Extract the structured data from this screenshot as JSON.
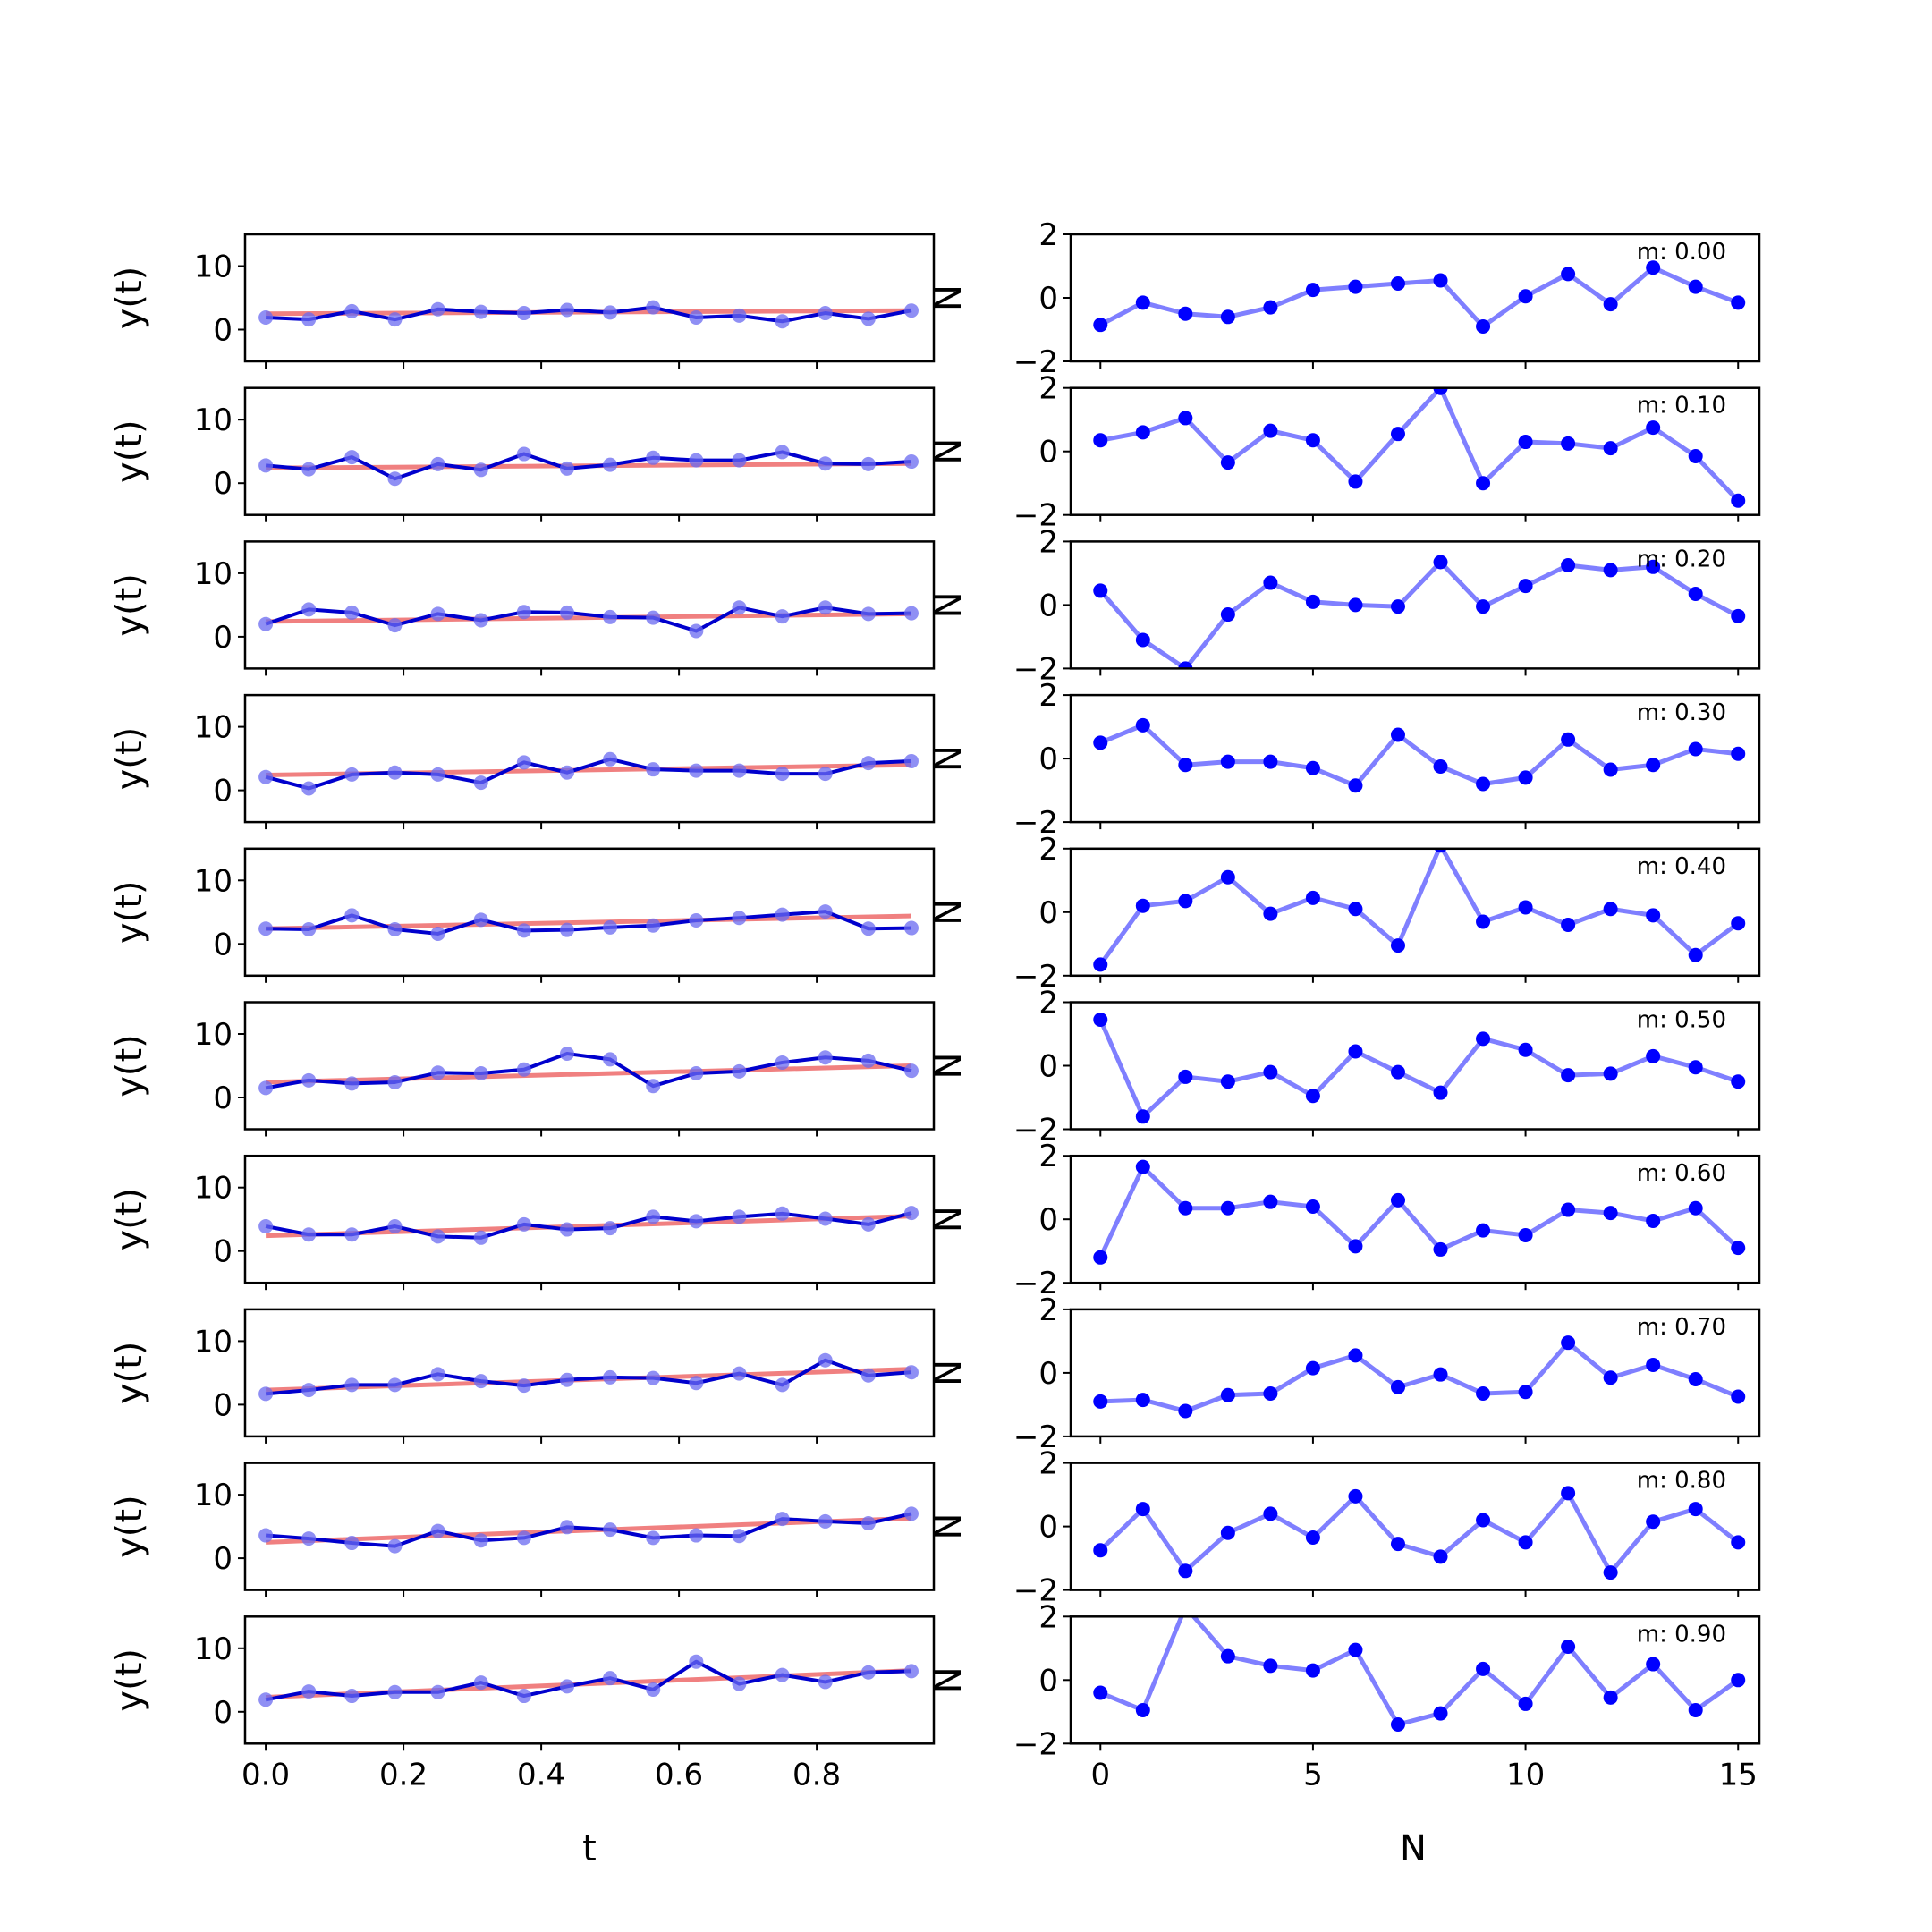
{
  "figure": {
    "left_xlabel": "t",
    "right_xlabel": "N",
    "left_ylabel": "y(t)",
    "right_ylabel": "N",
    "colors": {
      "fit": "#f08080",
      "data": "#0000cd",
      "markers": "#6a6af0",
      "residual": "#0000ff"
    }
  },
  "chart_data": [
    {
      "type": "line",
      "panel": "left",
      "ylabel": "y(t)",
      "xlabel": "t",
      "xlim": [
        -0.03,
        0.97
      ],
      "ylim": [
        -5,
        15
      ],
      "xticks": [
        0.0,
        0.2,
        0.4,
        0.6,
        0.8
      ],
      "xtick_labels": [
        "0.0",
        "0.2",
        "0.4",
        "0.6",
        "0.8"
      ],
      "yticks": [
        0,
        10
      ],
      "ytick_labels": [
        "0",
        "10"
      ],
      "x": [
        0,
        0.0625,
        0.125,
        0.1875,
        0.25,
        0.3125,
        0.375,
        0.4375,
        0.5,
        0.5625,
        0.625,
        0.6875,
        0.75,
        0.8125,
        0.875,
        0.9375
      ],
      "series": [
        {
          "m": 0.0,
          "values": [
            1.9,
            1.6,
            2.9,
            1.6,
            3.2,
            2.8,
            2.6,
            3.1,
            2.7,
            3.5,
            1.9,
            2.2,
            1.3,
            2.6,
            1.7,
            3.0
          ],
          "fit": [
            2.5,
            3.0
          ]
        },
        {
          "m": 0.1,
          "values": [
            2.8,
            2.2,
            4.1,
            0.7,
            3.0,
            2.1,
            4.6,
            2.3,
            2.9,
            4.0,
            3.6,
            3.6,
            4.9,
            3.1,
            3.0,
            3.4
          ],
          "fit": [
            2.4,
            3.1
          ]
        },
        {
          "m": 0.2,
          "values": [
            2.0,
            4.3,
            3.8,
            1.8,
            3.6,
            2.6,
            3.9,
            3.8,
            3.1,
            3.0,
            0.9,
            4.6,
            3.2,
            4.6,
            3.6,
            3.7
          ],
          "fit": [
            2.4,
            3.6
          ]
        },
        {
          "m": 0.3,
          "values": [
            2.1,
            0.3,
            2.5,
            2.8,
            2.5,
            1.2,
            4.4,
            2.8,
            4.9,
            3.3,
            3.1,
            3.1,
            2.6,
            2.6,
            4.3,
            4.6
          ],
          "fit": [
            2.4,
            4.0
          ]
        },
        {
          "m": 0.4,
          "values": [
            2.4,
            2.3,
            4.5,
            2.3,
            1.6,
            3.8,
            2.1,
            2.2,
            2.6,
            2.9,
            3.7,
            4.1,
            4.6,
            5.1,
            2.4,
            2.5
          ],
          "fit": [
            2.4,
            4.4
          ]
        },
        {
          "m": 0.5,
          "values": [
            1.5,
            2.7,
            2.2,
            2.4,
            3.9,
            3.8,
            4.4,
            6.9,
            6.0,
            1.8,
            3.8,
            4.1,
            5.5,
            6.3,
            5.8,
            4.2
          ],
          "fit": [
            2.4,
            5.0
          ]
        },
        {
          "m": 0.6,
          "values": [
            3.9,
            2.6,
            2.6,
            3.9,
            2.3,
            2.1,
            4.2,
            3.4,
            3.6,
            5.4,
            4.7,
            5.4,
            5.9,
            5.1,
            4.2,
            6.0
          ],
          "fit": [
            2.4,
            5.5
          ]
        },
        {
          "m": 0.7,
          "values": [
            1.7,
            2.3,
            3.1,
            3.1,
            4.8,
            3.7,
            3.0,
            3.9,
            4.3,
            4.2,
            3.4,
            4.9,
            3.1,
            7.0,
            4.6,
            5.1
          ],
          "fit": [
            2.3,
            5.6
          ]
        },
        {
          "m": 0.8,
          "values": [
            3.6,
            3.1,
            2.4,
            1.9,
            4.3,
            2.8,
            3.2,
            4.9,
            4.5,
            3.2,
            3.6,
            3.5,
            6.2,
            5.8,
            5.5,
            7.0
          ],
          "fit": [
            2.5,
            6.3
          ]
        },
        {
          "m": 0.9,
          "values": [
            1.9,
            3.2,
            2.5,
            3.1,
            3.1,
            4.6,
            2.5,
            4.0,
            5.3,
            3.5,
            7.9,
            4.4,
            5.8,
            4.7,
            6.2,
            6.4
          ],
          "fit": [
            2.3,
            6.5
          ]
        }
      ]
    },
    {
      "type": "line",
      "panel": "right",
      "xlabel": "N",
      "xlim": [
        -0.7,
        15.5
      ],
      "ylim": [
        -2,
        2
      ],
      "xticks": [
        0,
        5,
        10,
        15
      ],
      "xtick_labels": [
        "0",
        "5",
        "10",
        "15"
      ],
      "yticks": [
        -2,
        0,
        2
      ],
      "ytick_labels": [
        "−2",
        "0",
        "2"
      ],
      "x": [
        0,
        1,
        2,
        3,
        4,
        5,
        6,
        7,
        8,
        9,
        10,
        11,
        12,
        13,
        14,
        15
      ],
      "series": [
        {
          "label": "m: 0.00",
          "values": [
            -0.85,
            -0.15,
            -0.5,
            -0.6,
            -0.3,
            0.25,
            0.35,
            0.45,
            0.55,
            -0.9,
            0.05,
            0.75,
            -0.2,
            0.95,
            0.35,
            -0.15
          ]
        },
        {
          "label": "m: 0.10",
          "values": [
            0.35,
            0.6,
            1.05,
            -0.35,
            0.65,
            0.35,
            -0.95,
            0.55,
            2.0,
            -1.0,
            0.3,
            0.25,
            0.1,
            0.75,
            -0.15,
            -1.55
          ]
        },
        {
          "label": "m: 0.20",
          "values": [
            0.45,
            -1.1,
            -2.0,
            -0.3,
            0.7,
            0.1,
            0.0,
            -0.05,
            1.35,
            -0.05,
            0.6,
            1.25,
            1.1,
            1.2,
            0.35,
            -0.35
          ]
        },
        {
          "label": "m: 0.30",
          "values": [
            0.5,
            1.05,
            -0.2,
            -0.1,
            -0.1,
            -0.3,
            -0.85,
            0.75,
            -0.25,
            -0.8,
            -0.6,
            0.6,
            -0.35,
            -0.2,
            0.3,
            0.15
          ]
        },
        {
          "label": "m: 0.40",
          "values": [
            -1.65,
            0.2,
            0.35,
            1.1,
            -0.05,
            0.45,
            0.1,
            -1.05,
            2.1,
            -0.3,
            0.15,
            -0.4,
            0.1,
            -0.1,
            -1.35,
            -0.35
          ]
        },
        {
          "label": "m: 0.50",
          "values": [
            1.45,
            -1.6,
            -0.35,
            -0.5,
            -0.2,
            -0.95,
            0.45,
            -0.2,
            -0.85,
            0.85,
            0.5,
            -0.3,
            -0.25,
            0.3,
            -0.05,
            -0.5
          ]
        },
        {
          "label": "m: 0.60",
          "values": [
            -1.2,
            1.65,
            0.35,
            0.35,
            0.55,
            0.4,
            -0.85,
            0.6,
            -0.95,
            -0.35,
            -0.5,
            0.3,
            0.2,
            -0.05,
            0.35,
            -0.9
          ]
        },
        {
          "label": "m: 0.70",
          "values": [
            -0.9,
            -0.85,
            -1.2,
            -0.7,
            -0.65,
            0.15,
            0.55,
            -0.45,
            -0.05,
            -0.65,
            -0.6,
            0.95,
            -0.15,
            0.25,
            -0.2,
            -0.75
          ]
        },
        {
          "label": "m: 0.80",
          "values": [
            -0.75,
            0.55,
            -1.4,
            -0.2,
            0.4,
            -0.35,
            0.95,
            -0.55,
            -0.95,
            0.2,
            -0.5,
            1.05,
            -1.45,
            0.15,
            0.55,
            -0.5
          ]
        },
        {
          "label": "m: 0.90",
          "values": [
            -0.4,
            -0.95,
            2.3,
            0.75,
            0.45,
            0.3,
            0.95,
            -1.4,
            -1.05,
            0.35,
            -0.75,
            1.05,
            -0.55,
            0.5,
            -0.95,
            0.0
          ]
        }
      ]
    }
  ]
}
